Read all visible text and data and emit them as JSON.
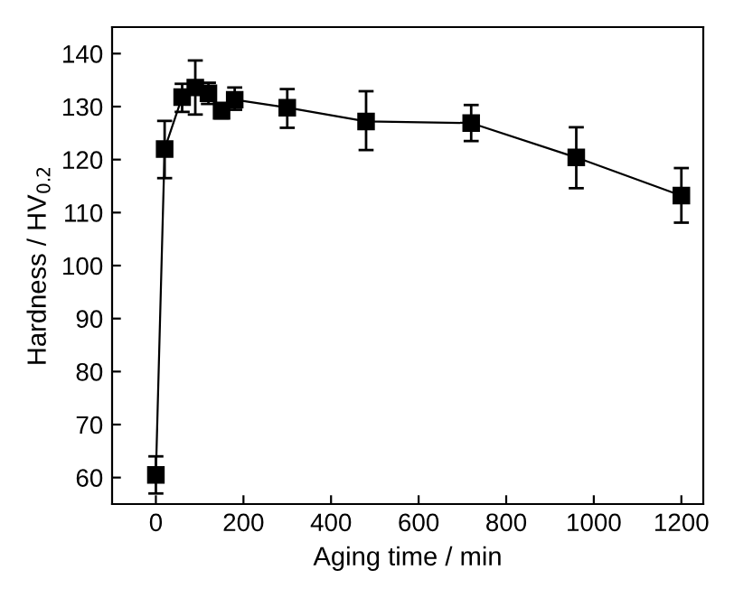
{
  "chart_data": {
    "type": "line",
    "xlabel": "Aging time / min",
    "ylabel": "Hardness / HV$_{0.2}$",
    "x": [
      0,
      20,
      60,
      90,
      120,
      150,
      180,
      300,
      480,
      720,
      960,
      1200
    ],
    "series": [
      {
        "color": "#000000",
        "values": [
          60.5,
          122,
          131.8,
          133.6,
          132.5,
          129.2,
          131.3,
          129.8,
          127.2,
          126.9,
          120.4,
          113.2
        ],
        "errors": [
          [
            57,
            64
          ],
          [
            116.5,
            127.3
          ],
          [
            129,
            134.3
          ],
          [
            128.5,
            138.7
          ],
          [
            130.5,
            134.5
          ],
          [
            127.8,
            130.7
          ],
          [
            129.4,
            133.6
          ],
          [
            126,
            133.3
          ],
          [
            121.8,
            132.9
          ],
          [
            123.5,
            130.3
          ],
          [
            114.6,
            126.1
          ],
          [
            108.1,
            118.4
          ]
        ]
      }
    ],
    "xlim": [
      -100,
      1250
    ],
    "xticks": [
      0,
      200,
      400,
      600,
      800,
      1000,
      1200
    ],
    "ylim": [
      55,
      145
    ],
    "yticks": [
      60,
      70,
      80,
      90,
      100,
      110,
      120,
      130,
      140
    ],
    "marker": "square",
    "line_style": "solid",
    "grid": false,
    "legend": false
  }
}
